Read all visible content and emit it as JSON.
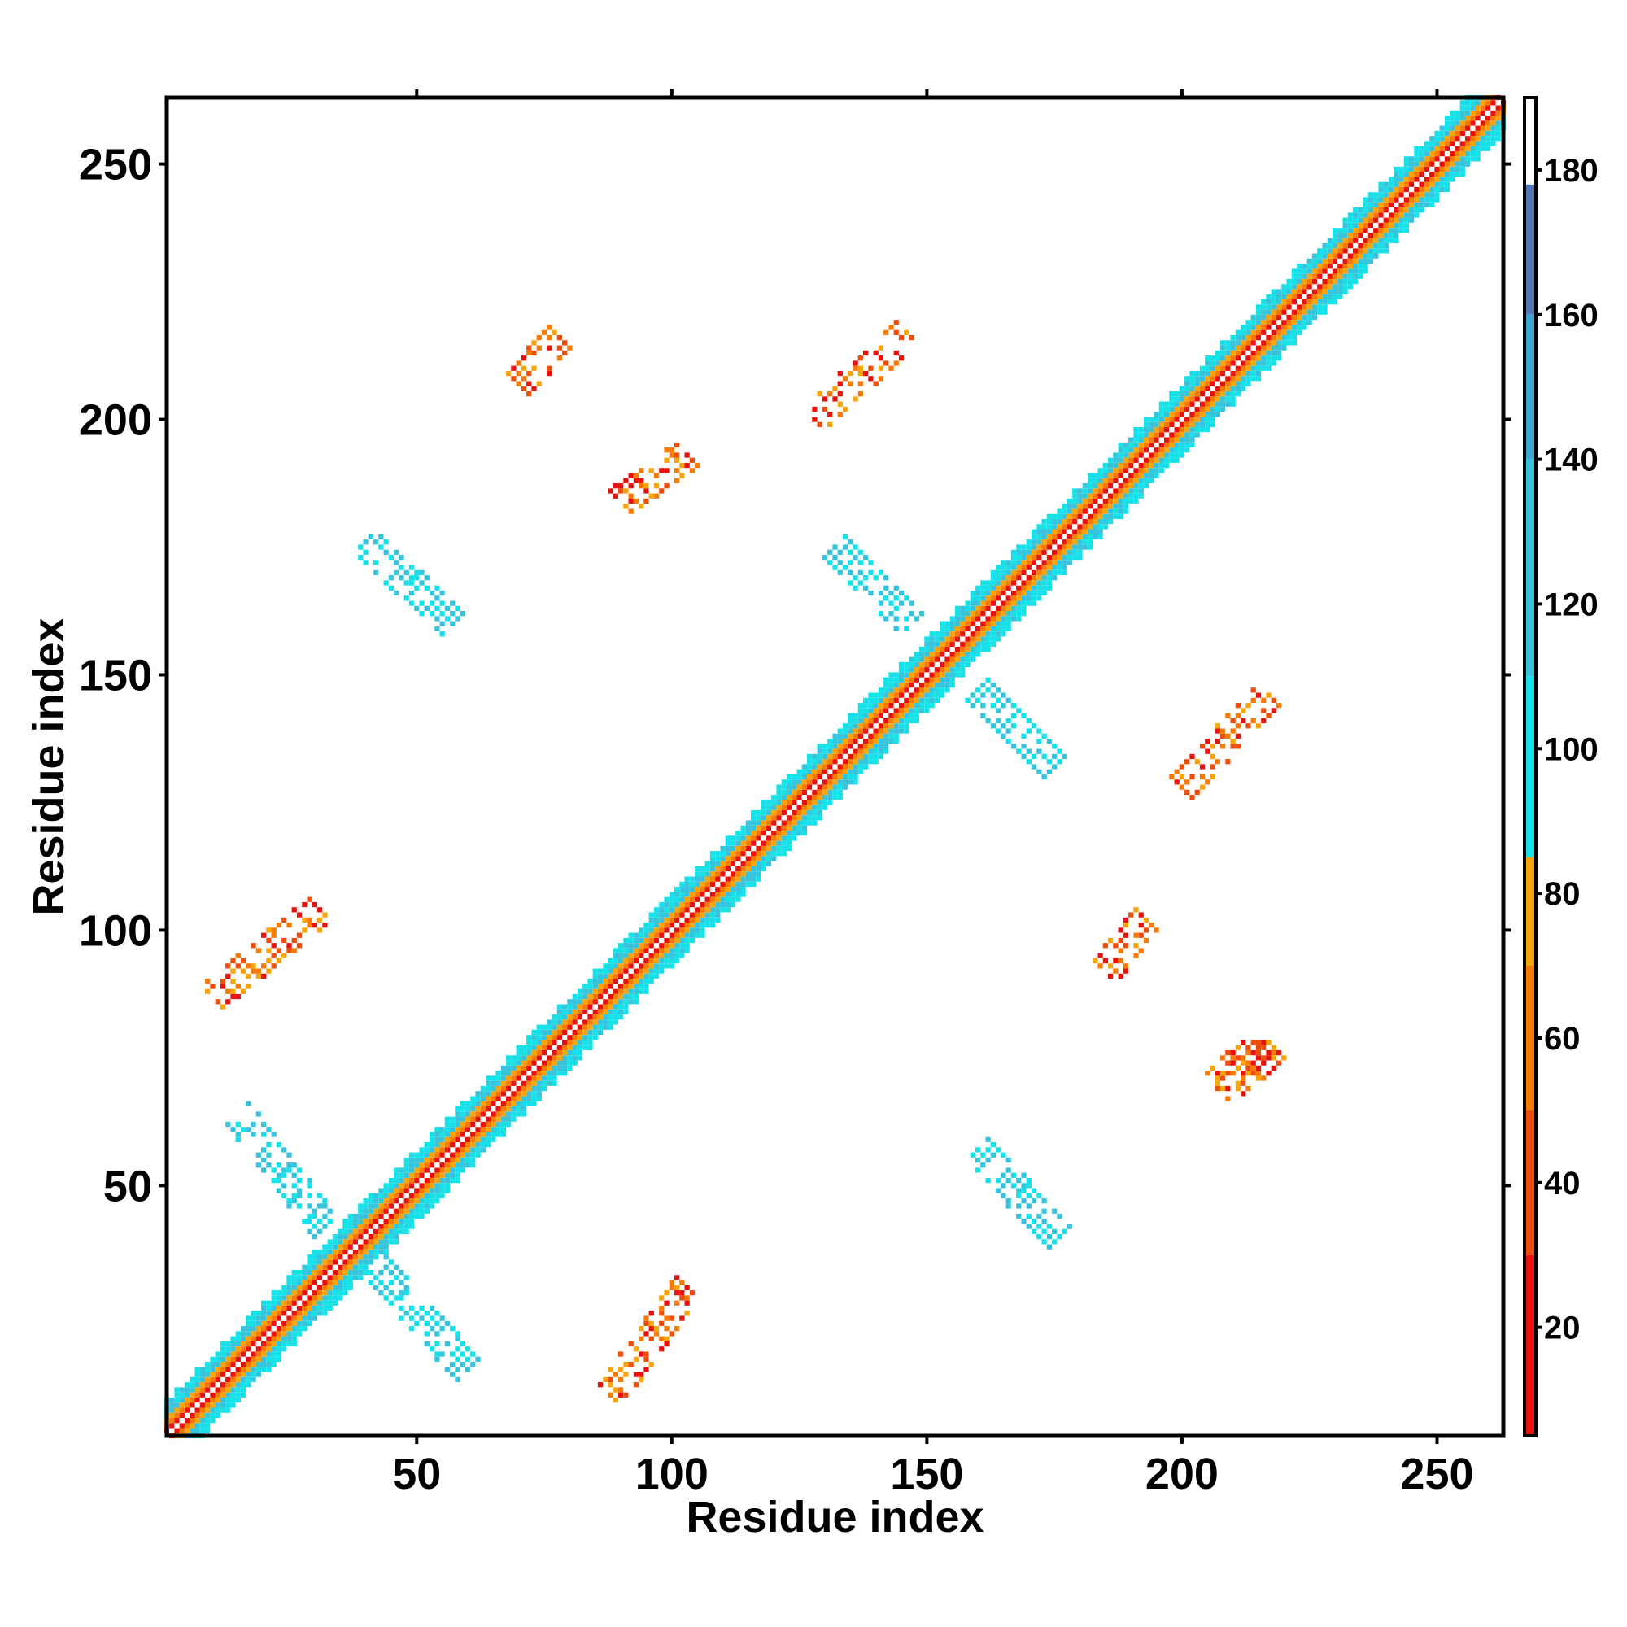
{
  "chart_data": {
    "type": "heatmap",
    "title": "",
    "xlabel": "Residue index",
    "ylabel": "Residue index",
    "xlim": [
      1,
      263
    ],
    "ylim": [
      1,
      263
    ],
    "x_ticks": [
      50,
      100,
      150,
      200,
      250
    ],
    "y_ticks": [
      50,
      100,
      150,
      200,
      250
    ],
    "x_tick_labels": [
      "50",
      "100",
      "150",
      "200",
      "250"
    ],
    "y_tick_labels": [
      "50",
      "100",
      "150",
      "200",
      "250"
    ],
    "colorbar": {
      "range": [
        5,
        190
      ],
      "ticks": [
        20,
        40,
        60,
        80,
        100,
        120,
        140,
        160,
        180
      ],
      "tick_labels": [
        "20",
        "40",
        "60",
        "80",
        "100",
        "120",
        "140",
        "160",
        "180"
      ],
      "bands": [
        {
          "from": 5,
          "to": 30,
          "color": "#e8120c"
        },
        {
          "from": 30,
          "to": 50,
          "color": "#ef4e0a"
        },
        {
          "from": 50,
          "to": 70,
          "color": "#f77a04"
        },
        {
          "from": 70,
          "to": 85,
          "color": "#f9a50a"
        },
        {
          "from": 85,
          "to": 110,
          "color": "#17e1e8"
        },
        {
          "from": 110,
          "to": 140,
          "color": "#36c4dc"
        },
        {
          "from": 140,
          "to": 160,
          "color": "#3aa6d2"
        },
        {
          "from": 160,
          "to": 178,
          "color": "#5377b4"
        },
        {
          "from": 178,
          "to": 190,
          "color": "#ffffff"
        }
      ]
    },
    "features": [
      {
        "kind": "diagonal",
        "description": "main diagonal band",
        "x_range": [
          1,
          263
        ]
      },
      {
        "kind": "parallel",
        "x": [
          88,
          103
        ],
        "y": [
          9,
          30
        ],
        "value_class": "red-orange"
      },
      {
        "kind": "parallel",
        "x": [
          10,
          31
        ],
        "y": [
          87,
          104
        ],
        "value_class": "red-orange"
      },
      {
        "kind": "antiparallel",
        "x": [
          42,
          60
        ],
        "y": [
          14,
          34
        ],
        "value_class": "cyan"
      },
      {
        "kind": "antiparallel",
        "x": [
          15,
          32
        ],
        "y": [
          42,
          64
        ],
        "value_class": "cyan"
      },
      {
        "kind": "antiparallel",
        "x": [
          40,
          57
        ],
        "y": [
          160,
          176
        ],
        "value_class": "cyan"
      },
      {
        "kind": "antiparallel",
        "x": [
          160,
          176
        ],
        "y": [
          40,
          57
        ],
        "value_class": "cyan"
      },
      {
        "kind": "antiparallel",
        "x": [
          132,
          147
        ],
        "y": [
          160,
          175
        ],
        "value_class": "cyan"
      },
      {
        "kind": "antiparallel",
        "x": [
          160,
          175
        ],
        "y": [
          132,
          147
        ],
        "value_class": "cyan"
      },
      {
        "kind": "parallel",
        "x": [
          70,
          78
        ],
        "y": [
          207,
          216
        ],
        "value_class": "red-orange"
      },
      {
        "kind": "parallel",
        "x": [
          207,
          216
        ],
        "y": [
          70,
          78
        ],
        "value_class": "red-orange"
      },
      {
        "kind": "parallel",
        "x": [
          128,
          146
        ],
        "y": [
          200,
          217
        ],
        "value_class": "red-orange"
      },
      {
        "kind": "parallel",
        "x": [
          200,
          217
        ],
        "y": [
          128,
          146
        ],
        "value_class": "red-orange"
      },
      {
        "kind": "parallel",
        "x": [
          90,
          103
        ],
        "y": [
          184,
          193
        ],
        "value_class": "red-orange"
      },
      {
        "kind": "parallel",
        "x": [
          185,
          193
        ],
        "y": [
          92,
          102
        ],
        "value_class": "red-orange"
      },
      {
        "kind": "parallel",
        "x": [
          208,
          218
        ],
        "y": [
          68,
          77
        ],
        "value_class": "red-orange"
      }
    ]
  }
}
